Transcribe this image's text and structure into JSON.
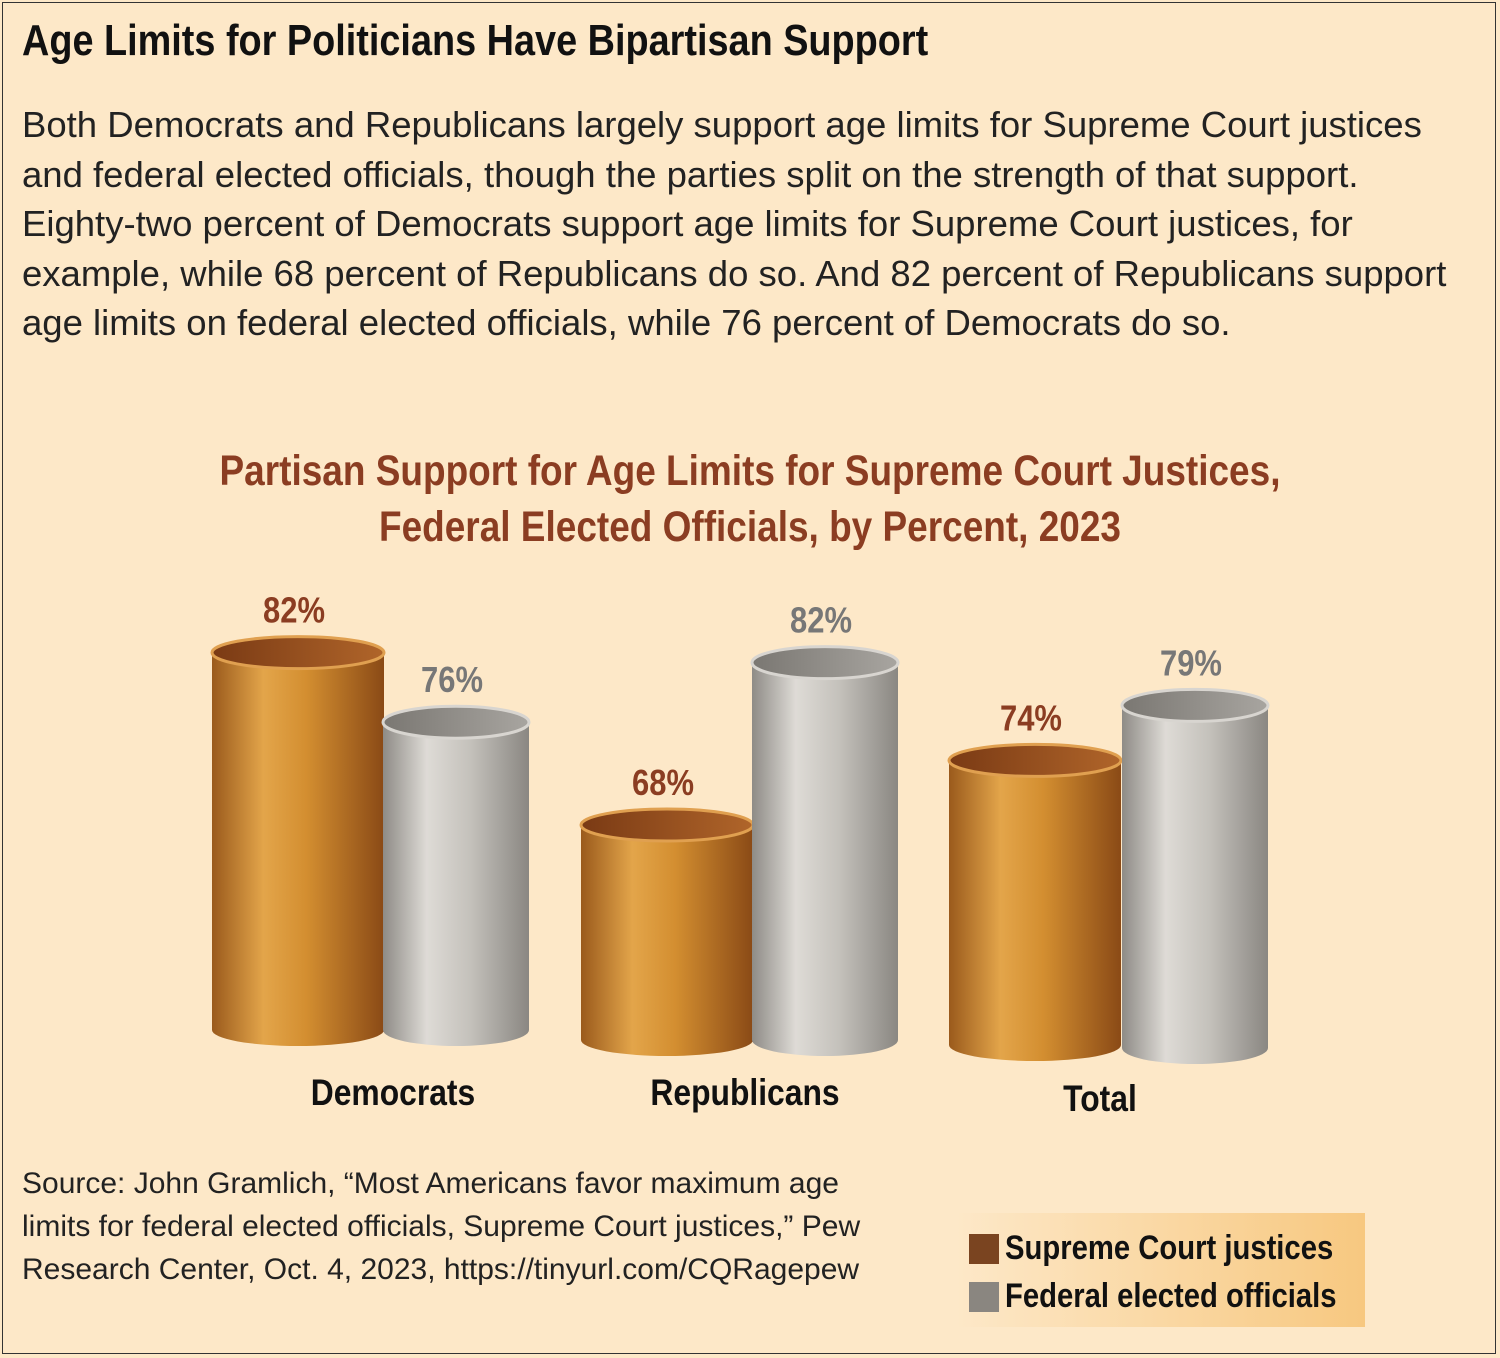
{
  "title": "Age Limits for Politicians Have Bipartisan Support",
  "intro": "Both Democrats and Republicans largely support age limits for Supreme Court justices and federal elected officials, though the parties split on the strength of that support. Eighty-two percent of Democrats support age limits for Supreme Court justices, for example, while 68 percent of Republicans do so. And 82 percent of Republicans support age limits on federal elected officials, while 76 percent of Democrats do so.",
  "source": "Source: John Gramlich, “Most Americans favor maximum age limits for federal elected officials, Supreme Court justices,” Pew Research Center, Oct. 4, 2023, https://tinyurl.com/CQRagepew",
  "chart_data": {
    "type": "bar",
    "style": "3d-cylinder",
    "title_line1": "Partisan Support for Age Limits for Supreme Court Justices,",
    "title_line2": "Federal Elected Officials, by Percent, 2023",
    "categories": [
      "Democrats",
      "Republicans",
      "Total"
    ],
    "series": [
      {
        "name": "Supreme Court justices",
        "values": [
          82,
          68,
          74
        ],
        "labels": [
          "82%",
          "68%",
          "74%"
        ],
        "color": "#c8862e",
        "label_color": "#8b3d22",
        "swatch": "#7a4420"
      },
      {
        "name": "Federal elected officials",
        "values": [
          76,
          82,
          79
        ],
        "labels": [
          "76%",
          "82%",
          "79%"
        ],
        "color": "#bdbab4",
        "label_color": "#777777",
        "swatch": "#8a8680"
      }
    ],
    "legend_position": "bottom-right",
    "grid": false,
    "axes_shown": false
  }
}
